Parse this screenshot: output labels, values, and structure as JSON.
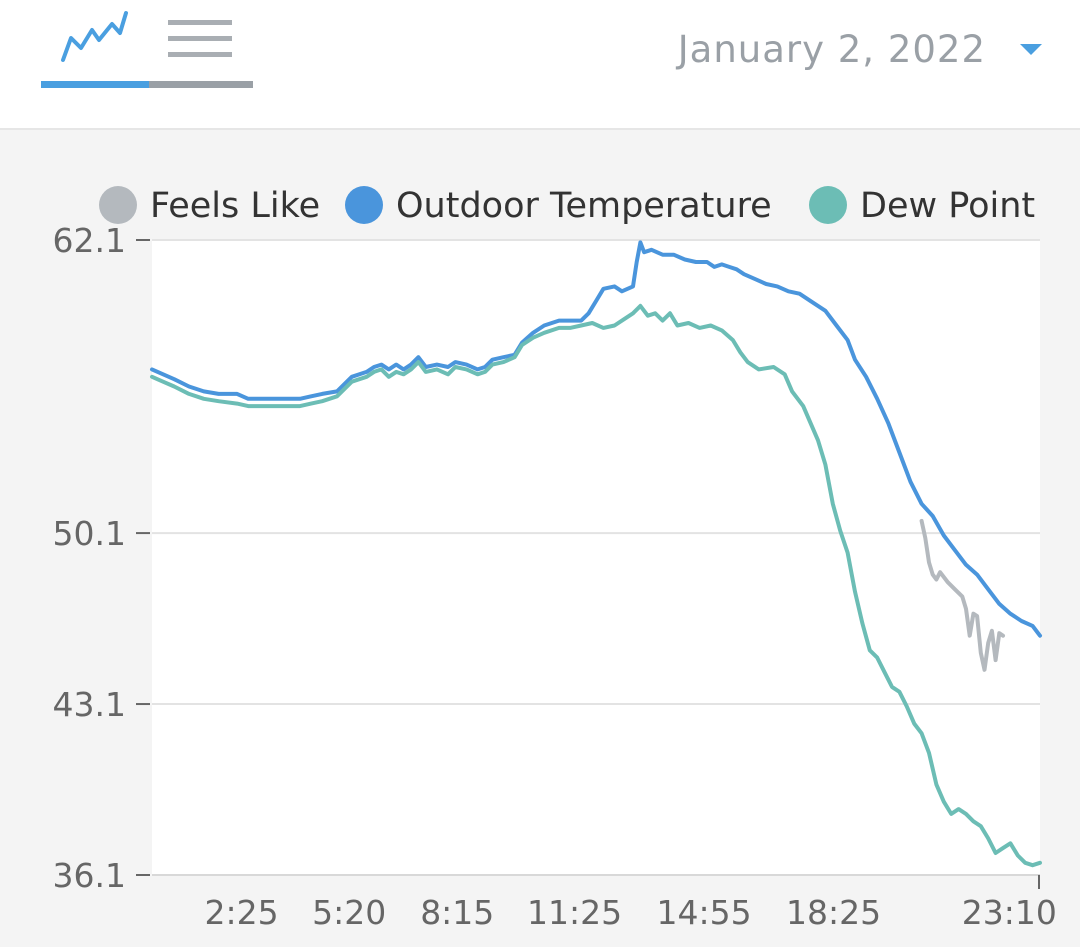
{
  "header": {
    "tabs": [
      {
        "icon": "line-chart-icon",
        "active": true
      },
      {
        "icon": "list-icon",
        "active": false
      }
    ],
    "date": "January 2, 2022",
    "date_dropdown_icon": "caret-down-icon"
  },
  "colors": {
    "accent": "#4a9fe0",
    "feels_like": "#b4b9be",
    "outdoor_temperature": "#4a95dc",
    "dew_point": "#6cbdb5",
    "inactive_tab": "#9aa0a6"
  },
  "chart_data": {
    "type": "line",
    "x_unit": "hours since 00:00",
    "xlim": [
      0,
      24
    ],
    "ylim": [
      36.1,
      62.1
    ],
    "yticks": [
      {
        "value": 62.1,
        "label": "62.1"
      },
      {
        "value": 50.1,
        "label": "50.1"
      },
      {
        "value": 43.1,
        "label": "43.1"
      },
      {
        "value": 36.1,
        "label": "36.1"
      }
    ],
    "xticks": [
      {
        "value": 2.42,
        "label": "2:25"
      },
      {
        "value": 5.33,
        "label": "5:20"
      },
      {
        "value": 8.25,
        "label": "8:15"
      },
      {
        "value": 11.42,
        "label": "11:25"
      },
      {
        "value": 14.92,
        "label": "14:55"
      },
      {
        "value": 18.42,
        "label": "18:25"
      },
      {
        "value": 23.17,
        "label": "23:10"
      }
    ],
    "legend": {
      "position": "top",
      "entries": [
        "Feels Like",
        "Outdoor Temperature",
        "Dew Point"
      ]
    },
    "grid": true,
    "series": [
      {
        "name": "Feels Like",
        "color": "#b4b9be",
        "points": [
          [
            20.8,
            50.6
          ],
          [
            20.9,
            49.9
          ],
          [
            21.0,
            48.9
          ],
          [
            21.1,
            48.4
          ],
          [
            21.2,
            48.2
          ],
          [
            21.3,
            48.5
          ],
          [
            21.5,
            48.1
          ],
          [
            21.7,
            47.8
          ],
          [
            21.9,
            47.5
          ],
          [
            22.0,
            47.0
          ],
          [
            22.1,
            45.9
          ],
          [
            22.2,
            46.8
          ],
          [
            22.3,
            46.7
          ],
          [
            22.4,
            45.2
          ],
          [
            22.5,
            44.5
          ],
          [
            22.6,
            45.6
          ],
          [
            22.7,
            46.1
          ],
          [
            22.8,
            44.9
          ],
          [
            22.9,
            46.0
          ],
          [
            23.0,
            45.9
          ]
        ]
      },
      {
        "name": "Outdoor Temperature",
        "points": [
          [
            0.0,
            56.8
          ],
          [
            0.3,
            56.6
          ],
          [
            0.6,
            56.4
          ],
          [
            1.0,
            56.1
          ],
          [
            1.4,
            55.9
          ],
          [
            1.8,
            55.8
          ],
          [
            2.3,
            55.8
          ],
          [
            2.6,
            55.6
          ],
          [
            3.0,
            55.6
          ],
          [
            3.5,
            55.6
          ],
          [
            4.0,
            55.6
          ],
          [
            4.3,
            55.7
          ],
          [
            4.6,
            55.8
          ],
          [
            5.0,
            55.9
          ],
          [
            5.4,
            56.5
          ],
          [
            5.8,
            56.7
          ],
          [
            6.0,
            56.9
          ],
          [
            6.2,
            57.0
          ],
          [
            6.4,
            56.8
          ],
          [
            6.6,
            57.0
          ],
          [
            6.8,
            56.8
          ],
          [
            7.0,
            57.0
          ],
          [
            7.2,
            57.3
          ],
          [
            7.4,
            56.9
          ],
          [
            7.7,
            57.0
          ],
          [
            8.0,
            56.9
          ],
          [
            8.2,
            57.1
          ],
          [
            8.5,
            57.0
          ],
          [
            8.8,
            56.8
          ],
          [
            9.0,
            56.9
          ],
          [
            9.2,
            57.2
          ],
          [
            9.5,
            57.3
          ],
          [
            9.8,
            57.4
          ],
          [
            10.0,
            57.9
          ],
          [
            10.3,
            58.3
          ],
          [
            10.6,
            58.6
          ],
          [
            11.0,
            58.8
          ],
          [
            11.3,
            58.8
          ],
          [
            11.6,
            58.8
          ],
          [
            11.8,
            59.1
          ],
          [
            12.0,
            59.6
          ],
          [
            12.2,
            60.1
          ],
          [
            12.5,
            60.2
          ],
          [
            12.7,
            60.0
          ],
          [
            13.0,
            60.2
          ],
          [
            13.1,
            61.2
          ],
          [
            13.2,
            62.0
          ],
          [
            13.3,
            61.6
          ],
          [
            13.5,
            61.7
          ],
          [
            13.8,
            61.5
          ],
          [
            14.1,
            61.5
          ],
          [
            14.4,
            61.3
          ],
          [
            14.7,
            61.2
          ],
          [
            15.0,
            61.2
          ],
          [
            15.2,
            61.0
          ],
          [
            15.4,
            61.1
          ],
          [
            15.6,
            61.0
          ],
          [
            15.8,
            60.9
          ],
          [
            16.0,
            60.7
          ],
          [
            16.3,
            60.5
          ],
          [
            16.6,
            60.3
          ],
          [
            16.9,
            60.2
          ],
          [
            17.2,
            60.0
          ],
          [
            17.5,
            59.9
          ],
          [
            17.8,
            59.6
          ],
          [
            18.0,
            59.4
          ],
          [
            18.2,
            59.2
          ],
          [
            18.5,
            58.6
          ],
          [
            18.8,
            58.0
          ],
          [
            19.0,
            57.2
          ],
          [
            19.3,
            56.5
          ],
          [
            19.6,
            55.6
          ],
          [
            19.9,
            54.6
          ],
          [
            20.2,
            53.4
          ],
          [
            20.5,
            52.2
          ],
          [
            20.8,
            51.3
          ],
          [
            21.1,
            50.8
          ],
          [
            21.4,
            50.0
          ],
          [
            21.7,
            49.4
          ],
          [
            22.0,
            48.8
          ],
          [
            22.3,
            48.4
          ],
          [
            22.6,
            47.8
          ],
          [
            22.9,
            47.2
          ],
          [
            23.2,
            46.8
          ],
          [
            23.5,
            46.5
          ],
          [
            23.8,
            46.3
          ],
          [
            24.0,
            45.9
          ]
        ]
      },
      {
        "name": "Dew Point",
        "points": [
          [
            0.0,
            56.5
          ],
          [
            0.3,
            56.3
          ],
          [
            0.6,
            56.1
          ],
          [
            1.0,
            55.8
          ],
          [
            1.4,
            55.6
          ],
          [
            1.8,
            55.5
          ],
          [
            2.3,
            55.4
          ],
          [
            2.6,
            55.3
          ],
          [
            3.0,
            55.3
          ],
          [
            3.5,
            55.3
          ],
          [
            4.0,
            55.3
          ],
          [
            4.3,
            55.4
          ],
          [
            4.6,
            55.5
          ],
          [
            5.0,
            55.7
          ],
          [
            5.4,
            56.3
          ],
          [
            5.8,
            56.5
          ],
          [
            6.0,
            56.7
          ],
          [
            6.2,
            56.8
          ],
          [
            6.4,
            56.5
          ],
          [
            6.6,
            56.7
          ],
          [
            6.8,
            56.6
          ],
          [
            7.0,
            56.8
          ],
          [
            7.2,
            57.1
          ],
          [
            7.4,
            56.7
          ],
          [
            7.7,
            56.8
          ],
          [
            8.0,
            56.6
          ],
          [
            8.2,
            56.9
          ],
          [
            8.5,
            56.8
          ],
          [
            8.8,
            56.6
          ],
          [
            9.0,
            56.7
          ],
          [
            9.2,
            57.0
          ],
          [
            9.5,
            57.1
          ],
          [
            9.8,
            57.3
          ],
          [
            10.0,
            57.8
          ],
          [
            10.3,
            58.1
          ],
          [
            10.6,
            58.3
          ],
          [
            11.0,
            58.5
          ],
          [
            11.3,
            58.5
          ],
          [
            11.6,
            58.6
          ],
          [
            11.9,
            58.7
          ],
          [
            12.2,
            58.5
          ],
          [
            12.5,
            58.6
          ],
          [
            12.8,
            58.9
          ],
          [
            13.0,
            59.1
          ],
          [
            13.2,
            59.4
          ],
          [
            13.4,
            59.0
          ],
          [
            13.6,
            59.1
          ],
          [
            13.8,
            58.8
          ],
          [
            14.0,
            59.1
          ],
          [
            14.2,
            58.6
          ],
          [
            14.5,
            58.7
          ],
          [
            14.8,
            58.5
          ],
          [
            15.1,
            58.6
          ],
          [
            15.4,
            58.4
          ],
          [
            15.7,
            58.0
          ],
          [
            15.9,
            57.5
          ],
          [
            16.1,
            57.1
          ],
          [
            16.4,
            56.8
          ],
          [
            16.8,
            56.9
          ],
          [
            17.1,
            56.6
          ],
          [
            17.3,
            55.9
          ],
          [
            17.6,
            55.3
          ],
          [
            17.8,
            54.6
          ],
          [
            18.0,
            53.9
          ],
          [
            18.2,
            52.9
          ],
          [
            18.4,
            51.3
          ],
          [
            18.6,
            50.2
          ],
          [
            18.8,
            49.3
          ],
          [
            19.0,
            47.7
          ],
          [
            19.2,
            46.4
          ],
          [
            19.4,
            45.3
          ],
          [
            19.6,
            45.0
          ],
          [
            19.8,
            44.4
          ],
          [
            20.0,
            43.8
          ],
          [
            20.2,
            43.6
          ],
          [
            20.4,
            43.0
          ],
          [
            20.6,
            42.3
          ],
          [
            20.8,
            41.9
          ],
          [
            21.0,
            41.1
          ],
          [
            21.2,
            39.8
          ],
          [
            21.4,
            39.1
          ],
          [
            21.6,
            38.6
          ],
          [
            21.8,
            38.8
          ],
          [
            22.0,
            38.6
          ],
          [
            22.2,
            38.3
          ],
          [
            22.4,
            38.1
          ],
          [
            22.6,
            37.6
          ],
          [
            22.8,
            37.0
          ],
          [
            23.0,
            37.2
          ],
          [
            23.2,
            37.4
          ],
          [
            23.4,
            36.9
          ],
          [
            23.6,
            36.6
          ],
          [
            23.8,
            36.5
          ],
          [
            24.0,
            36.6
          ]
        ]
      }
    ]
  }
}
